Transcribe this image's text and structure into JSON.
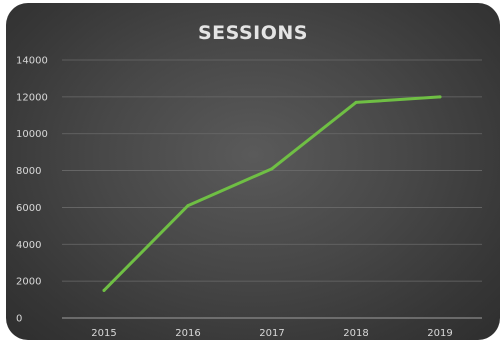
{
  "chart_data": {
    "type": "line",
    "title": "SESSIONS",
    "xlabel": "",
    "ylabel": "",
    "categories": [
      "2015",
      "2016",
      "2017",
      "2018",
      "2019"
    ],
    "series": [
      {
        "values": [
          1500,
          6100,
          8100,
          11700,
          12000
        ]
      }
    ],
    "ylim": [
      0,
      14000
    ],
    "yticks": [
      "0",
      "2000",
      "4000",
      "6000",
      "8000",
      "10000",
      "12000",
      "14000"
    ],
    "grid": true,
    "legend": "none",
    "colors": {
      "line": "#6fbf44",
      "grid": "#6a6a6a",
      "axis": "#8a8a8a",
      "text": "#d8d8d8"
    }
  }
}
